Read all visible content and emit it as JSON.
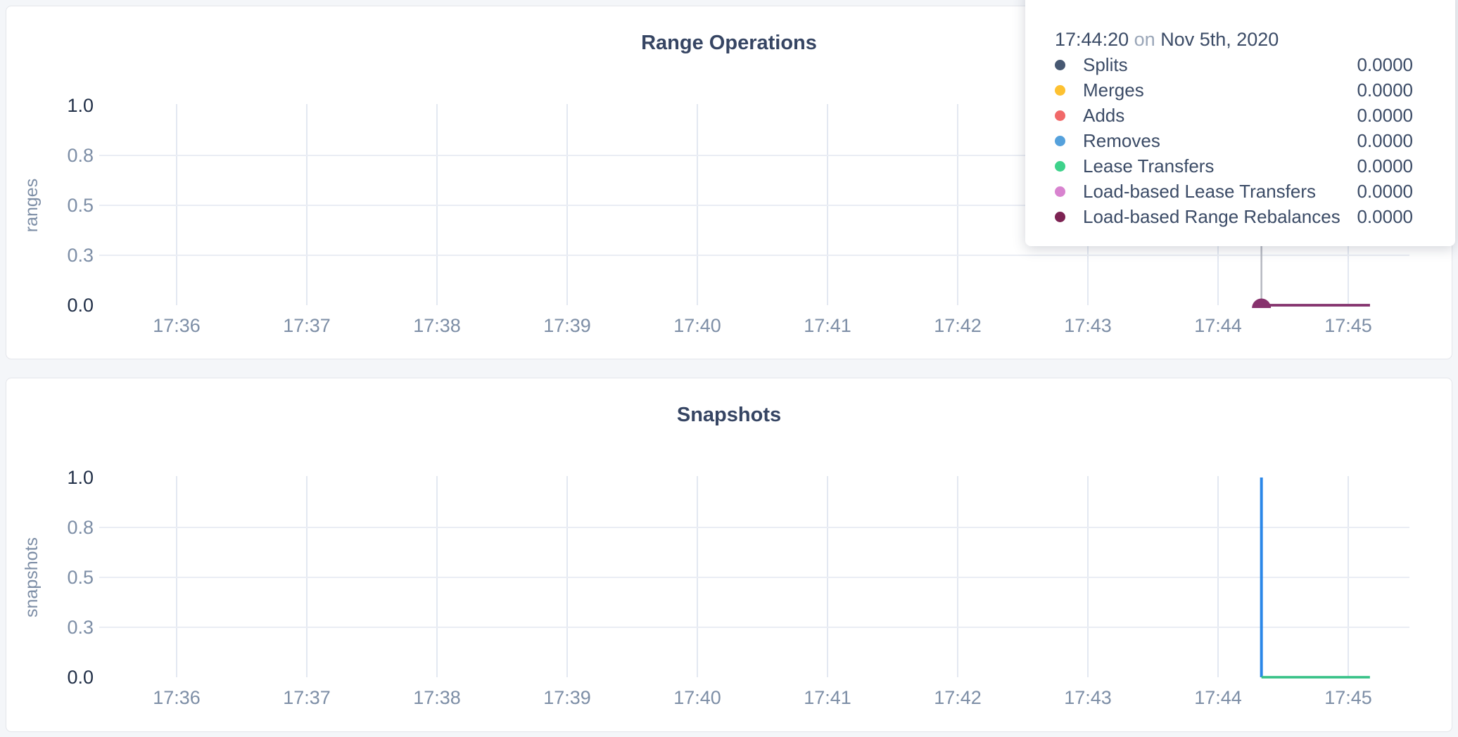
{
  "tooltip": {
    "time": "17:44:20",
    "preposition": "on",
    "date": "Nov 5th, 2020",
    "rows": [
      {
        "label": "Splits",
        "value": "0.0000",
        "color": "#475872"
      },
      {
        "label": "Merges",
        "value": "0.0000",
        "color": "#fdc131"
      },
      {
        "label": "Adds",
        "value": "0.0000",
        "color": "#f16969"
      },
      {
        "label": "Removes",
        "value": "0.0000",
        "color": "#55a1dc"
      },
      {
        "label": "Lease Transfers",
        "value": "0.0000",
        "color": "#3ed28b"
      },
      {
        "label": "Load-based Lease Transfers",
        "value": "0.0000",
        "color": "#d883cf"
      },
      {
        "label": "Load-based Range Rebalances",
        "value": "0.0000",
        "color": "#7d2353"
      }
    ]
  },
  "chart_data": [
    {
      "type": "line",
      "title": "Range Operations",
      "ylabel": "ranges",
      "ylim": [
        0,
        1
      ],
      "ytick_labels": [
        "1.0",
        "0.8",
        "0.5",
        "0.3",
        "0.0"
      ],
      "ytick_values": [
        1.0,
        0.75,
        0.5,
        0.25,
        0.0
      ],
      "xtick_labels": [
        "17:36",
        "17:37",
        "17:38",
        "17:39",
        "17:40",
        "17:41",
        "17:42",
        "17:43",
        "17:44",
        "17:45"
      ],
      "grid": true,
      "legend_position": "hover-tooltip",
      "hover_time": "17:44:20",
      "crosshair_color": "#b6b9c1",
      "hover_dot_color": "#87326d",
      "series": [
        {
          "name": "Splits",
          "color": "#475872",
          "points": [
            [
              "17:44:20",
              0
            ],
            [
              "17:45:10",
              0
            ]
          ]
        },
        {
          "name": "Merges",
          "color": "#fdc131",
          "points": [
            [
              "17:44:20",
              0
            ],
            [
              "17:45:10",
              0
            ]
          ]
        },
        {
          "name": "Adds",
          "color": "#f16969",
          "points": [
            [
              "17:44:20",
              0
            ],
            [
              "17:45:10",
              0
            ]
          ]
        },
        {
          "name": "Removes",
          "color": "#55a1dc",
          "points": [
            [
              "17:44:20",
              0
            ],
            [
              "17:45:10",
              0
            ]
          ]
        },
        {
          "name": "Lease Transfers",
          "color": "#3ed28b",
          "points": [
            [
              "17:44:20",
              0
            ],
            [
              "17:45:10",
              0
            ]
          ]
        },
        {
          "name": "Load-based Lease Transfers",
          "color": "#d883cf",
          "points": [
            [
              "17:44:20",
              0
            ],
            [
              "17:45:10",
              0
            ]
          ]
        },
        {
          "name": "Load-based Range Rebalances",
          "color": "#87326d",
          "points": [
            [
              "17:44:20",
              0
            ],
            [
              "17:45:10",
              0
            ]
          ]
        }
      ]
    },
    {
      "type": "line",
      "title": "Snapshots",
      "ylabel": "snapshots",
      "ylim": [
        0,
        1
      ],
      "ytick_labels": [
        "1.0",
        "0.8",
        "0.5",
        "0.3",
        "0.0"
      ],
      "ytick_values": [
        1.0,
        0.75,
        0.5,
        0.25,
        0.0
      ],
      "xtick_labels": [
        "17:36",
        "17:37",
        "17:38",
        "17:39",
        "17:40",
        "17:41",
        "17:42",
        "17:43",
        "17:44",
        "17:45"
      ],
      "grid": true,
      "series": [
        {
          "name": "blue-spike-series",
          "color": "#2b87e8",
          "width": 4,
          "points": [
            [
              "17:44:20",
              1
            ],
            [
              "17:44:20",
              0
            ]
          ]
        },
        {
          "name": "green-flat-series",
          "color": "#35c185",
          "width": 3.5,
          "points": [
            [
              "17:44:20",
              0
            ],
            [
              "17:45:10",
              0
            ]
          ]
        }
      ]
    }
  ]
}
